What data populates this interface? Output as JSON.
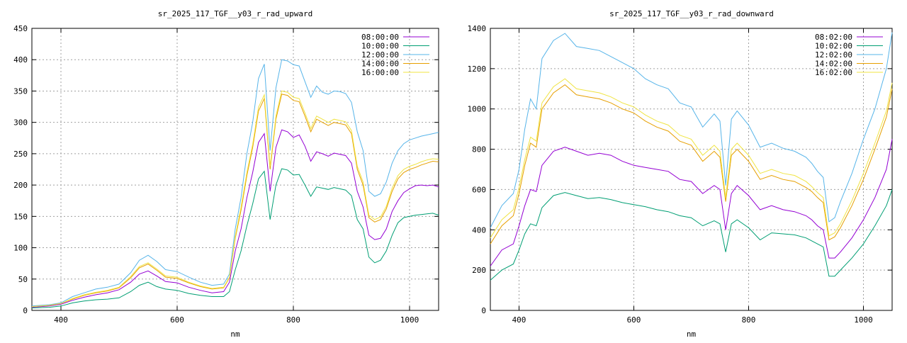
{
  "chart_data": [
    {
      "type": "line",
      "title": "sr_2025_117_TGF__y03_r_rad_upward",
      "xlabel": "nm",
      "ylabel": "",
      "xlim": [
        350,
        1050
      ],
      "ylim": [
        0,
        450
      ],
      "xticks": [
        "400",
        "600",
        "800",
        "1000"
      ],
      "yticks": [
        "0",
        "50",
        "100",
        "150",
        "200",
        "250",
        "300",
        "350",
        "400",
        "450"
      ],
      "grid": true,
      "legend_position": "top-right",
      "x": [
        350,
        380,
        400,
        420,
        440,
        460,
        480,
        500,
        520,
        535,
        550,
        565,
        580,
        600,
        620,
        640,
        660,
        680,
        690,
        700,
        710,
        720,
        730,
        740,
        750,
        760,
        770,
        780,
        790,
        800,
        810,
        820,
        830,
        840,
        850,
        860,
        870,
        880,
        890,
        900,
        910,
        920,
        930,
        940,
        950,
        960,
        970,
        980,
        990,
        1000,
        1010,
        1020,
        1030,
        1040,
        1050
      ],
      "series": [
        {
          "name": "08:00:00",
          "color": "#9400d3",
          "values": [
            5,
            7,
            10,
            16,
            21,
            25,
            28,
            33,
            45,
            58,
            63,
            55,
            46,
            44,
            37,
            32,
            28,
            30,
            45,
            95,
            130,
            180,
            220,
            268,
            282,
            190,
            260,
            288,
            285,
            276,
            280,
            262,
            238,
            253,
            250,
            246,
            251,
            249,
            247,
            235,
            190,
            165,
            120,
            113,
            115,
            130,
            158,
            175,
            188,
            194,
            199,
            200,
            199,
            200,
            197
          ]
        },
        {
          "name": "10:00:00",
          "color": "#009e73",
          "values": [
            4,
            5,
            7,
            12,
            15,
            17,
            18,
            20,
            30,
            40,
            45,
            38,
            34,
            32,
            27,
            24,
            22,
            22,
            30,
            65,
            95,
            135,
            170,
            210,
            222,
            145,
            200,
            226,
            224,
            216,
            217,
            200,
            182,
            197,
            195,
            193,
            196,
            194,
            192,
            183,
            145,
            130,
            85,
            76,
            80,
            95,
            120,
            140,
            148,
            150,
            152,
            153,
            154,
            155,
            152
          ]
        },
        {
          "name": "12:00:00",
          "color": "#56b4e9",
          "values": [
            7,
            9,
            12,
            22,
            28,
            34,
            37,
            42,
            60,
            80,
            88,
            78,
            65,
            62,
            53,
            45,
            40,
            42,
            58,
            130,
            180,
            250,
            300,
            370,
            393,
            255,
            355,
            400,
            398,
            392,
            390,
            365,
            340,
            358,
            348,
            345,
            350,
            349,
            346,
            332,
            285,
            255,
            190,
            182,
            186,
            205,
            235,
            255,
            266,
            272,
            275,
            278,
            280,
            282,
            284
          ]
        },
        {
          "name": "14:00:00",
          "color": "#e69f00",
          "values": [
            6,
            8,
            11,
            18,
            24,
            28,
            31,
            36,
            52,
            68,
            74,
            64,
            53,
            51,
            44,
            38,
            34,
            36,
            52,
            115,
            160,
            215,
            260,
            318,
            338,
            225,
            305,
            345,
            343,
            335,
            333,
            310,
            285,
            305,
            300,
            295,
            300,
            298,
            296,
            282,
            225,
            200,
            148,
            141,
            145,
            162,
            190,
            210,
            220,
            225,
            228,
            232,
            235,
            238,
            237
          ]
        },
        {
          "name": "16:00:00",
          "color": "#f0e442",
          "values": [
            6,
            8,
            11,
            19,
            25,
            29,
            32,
            37,
            54,
            70,
            76,
            66,
            55,
            53,
            45,
            39,
            35,
            37,
            53,
            118,
            165,
            220,
            265,
            324,
            344,
            230,
            310,
            350,
            348,
            340,
            338,
            315,
            290,
            310,
            305,
            300,
            305,
            303,
            301,
            287,
            230,
            205,
            152,
            145,
            149,
            166,
            195,
            215,
            225,
            230,
            233,
            237,
            240,
            242,
            241
          ]
        }
      ]
    },
    {
      "type": "line",
      "title": "sr_2025_117_TGF__y03_r_rad_downward",
      "xlabel": "nm",
      "ylabel": "",
      "xlim": [
        350,
        1050
      ],
      "ylim": [
        0,
        1400
      ],
      "xticks": [
        "400",
        "600",
        "800",
        "1000"
      ],
      "yticks": [
        "0",
        "200",
        "400",
        "600",
        "800",
        "1000",
        "1200",
        "1400"
      ],
      "grid": true,
      "legend_position": "top-right",
      "x": [
        350,
        370,
        390,
        400,
        410,
        420,
        430,
        440,
        460,
        480,
        500,
        520,
        540,
        560,
        580,
        600,
        620,
        640,
        660,
        680,
        700,
        720,
        740,
        750,
        760,
        770,
        780,
        800,
        820,
        840,
        860,
        880,
        900,
        910,
        920,
        930,
        940,
        950,
        960,
        980,
        1000,
        1020,
        1040,
        1050
      ],
      "series": [
        {
          "name": "08:02:00",
          "color": "#9400d3",
          "values": [
            220,
            300,
            330,
            420,
            520,
            600,
            590,
            720,
            790,
            810,
            790,
            770,
            780,
            770,
            740,
            720,
            710,
            700,
            690,
            650,
            640,
            580,
            620,
            600,
            400,
            580,
            620,
            570,
            500,
            520,
            500,
            490,
            470,
            450,
            420,
            400,
            260,
            260,
            290,
            360,
            450,
            560,
            700,
            850
          ]
        },
        {
          "name": "10:02:00",
          "color": "#009e73",
          "values": [
            150,
            200,
            230,
            300,
            380,
            430,
            420,
            510,
            570,
            585,
            570,
            555,
            560,
            550,
            535,
            525,
            515,
            500,
            490,
            470,
            460,
            420,
            445,
            430,
            290,
            430,
            450,
            410,
            350,
            385,
            380,
            375,
            360,
            345,
            330,
            315,
            170,
            170,
            200,
            260,
            330,
            420,
            520,
            600
          ]
        },
        {
          "name": "12:02:00",
          "color": "#56b4e9",
          "values": [
            410,
            520,
            580,
            700,
            900,
            1050,
            1000,
            1250,
            1340,
            1375,
            1310,
            1300,
            1290,
            1260,
            1230,
            1200,
            1150,
            1120,
            1100,
            1030,
            1010,
            910,
            975,
            940,
            620,
            950,
            990,
            920,
            810,
            830,
            805,
            790,
            760,
            730,
            690,
            660,
            440,
            460,
            540,
            680,
            850,
            1000,
            1200,
            1380
          ]
        },
        {
          "name": "14:02:00",
          "color": "#e69f00",
          "values": [
            330,
            420,
            470,
            580,
            720,
            830,
            810,
            1000,
            1080,
            1120,
            1070,
            1060,
            1050,
            1030,
            1000,
            980,
            940,
            910,
            890,
            840,
            820,
            740,
            790,
            760,
            540,
            770,
            800,
            740,
            650,
            670,
            650,
            640,
            610,
            590,
            560,
            535,
            350,
            365,
            410,
            520,
            650,
            800,
            960,
            1100
          ]
        },
        {
          "name": "16:02:00",
          "color": "#f0e442",
          "values": [
            360,
            450,
            500,
            610,
            750,
            860,
            840,
            1030,
            1110,
            1150,
            1100,
            1090,
            1080,
            1060,
            1030,
            1010,
            970,
            940,
            920,
            870,
            850,
            770,
            820,
            790,
            560,
            800,
            830,
            770,
            680,
            700,
            680,
            670,
            640,
            615,
            585,
            560,
            370,
            385,
            430,
            545,
            680,
            830,
            990,
            1130
          ]
        }
      ]
    }
  ]
}
